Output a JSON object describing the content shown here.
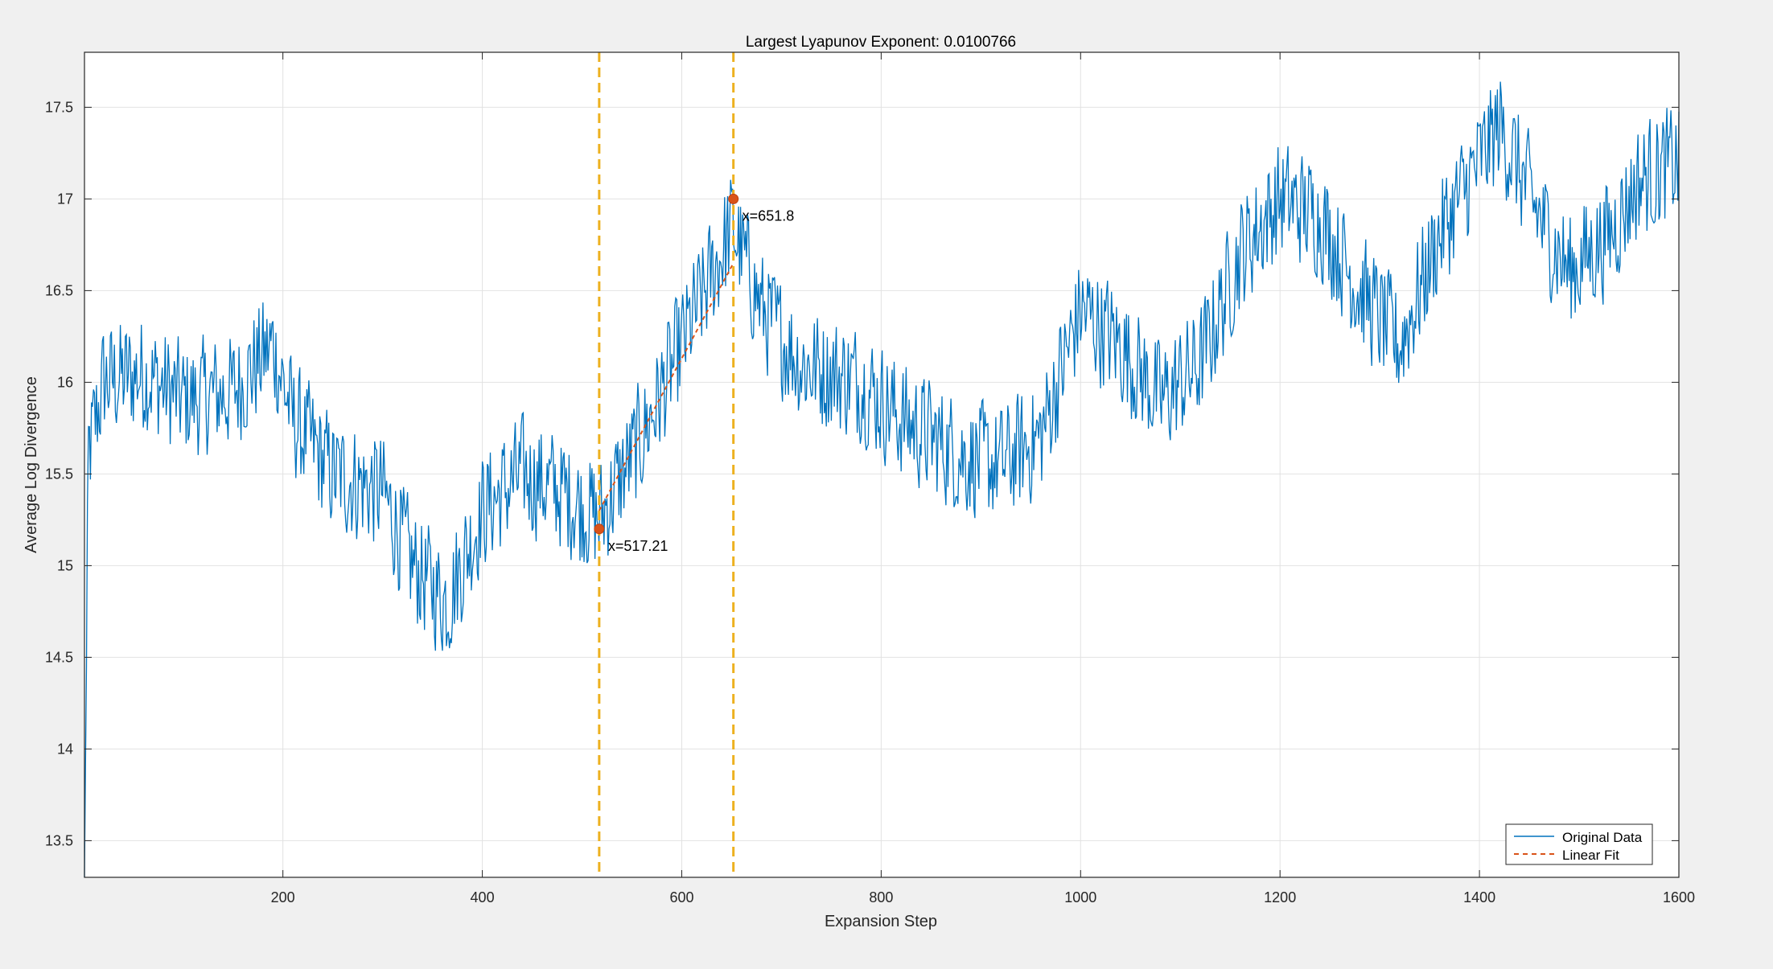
{
  "chart_data": {
    "type": "line",
    "title": "Largest Lyapunov Exponent: 0.0100766",
    "xlabel": "Expansion Step",
    "ylabel": "Average Log Divergence",
    "xlim": [
      1,
      1600
    ],
    "ylim": [
      13.3,
      17.8
    ],
    "xticks": [
      200,
      400,
      600,
      800,
      1000,
      1200,
      1400,
      1600
    ],
    "xtick_labels": [
      "200",
      "400",
      "600",
      "800",
      "1000",
      "1200",
      "1400",
      "1600"
    ],
    "yticks": [
      13.5,
      14,
      14.5,
      15,
      15.5,
      16,
      16.5,
      17,
      17.5
    ],
    "ytick_labels": [
      "13.5",
      "14",
      "14.5",
      "15",
      "15.5",
      "16",
      "16.5",
      "17",
      "17.5"
    ],
    "grid": true,
    "legend_location": "bottom-right",
    "series": [
      {
        "name": "Original Data",
        "style": "solid",
        "color": "#0072bd",
        "sample_step": 10,
        "trend": [
          [
            1,
            13.3
          ],
          [
            5,
            15.6
          ],
          [
            20,
            16.0
          ],
          [
            60,
            16.05
          ],
          [
            100,
            15.9
          ],
          [
            150,
            15.95
          ],
          [
            190,
            16.2
          ],
          [
            210,
            15.8
          ],
          [
            250,
            15.5
          ],
          [
            300,
            15.4
          ],
          [
            330,
            15.0
          ],
          [
            365,
            14.8
          ],
          [
            400,
            15.3
          ],
          [
            440,
            15.5
          ],
          [
            480,
            15.4
          ],
          [
            517,
            15.25
          ],
          [
            560,
            15.7
          ],
          [
            600,
            16.2
          ],
          [
            651,
            16.85
          ],
          [
            680,
            16.4
          ],
          [
            720,
            16.1
          ],
          [
            780,
            16.0
          ],
          [
            820,
            15.8
          ],
          [
            880,
            15.6
          ],
          [
            920,
            15.55
          ],
          [
            960,
            15.7
          ],
          [
            1000,
            16.4
          ],
          [
            1040,
            16.2
          ],
          [
            1080,
            15.9
          ],
          [
            1120,
            16.1
          ],
          [
            1160,
            16.7
          ],
          [
            1200,
            17.0
          ],
          [
            1240,
            16.9
          ],
          [
            1280,
            16.5
          ],
          [
            1320,
            16.2
          ],
          [
            1360,
            16.8
          ],
          [
            1400,
            17.2
          ],
          [
            1420,
            17.4
          ],
          [
            1460,
            16.9
          ],
          [
            1490,
            16.6
          ],
          [
            1530,
            16.8
          ],
          [
            1560,
            17.1
          ],
          [
            1600,
            17.2
          ]
        ]
      },
      {
        "name": "Linear Fit",
        "style": "dashed",
        "color": "#d95319",
        "x": [
          517.21,
          651.8
        ],
        "y": [
          15.3,
          16.65
        ]
      }
    ],
    "vertical_lines": [
      {
        "x": 517.21,
        "color": "#edb120",
        "style": "dashed"
      },
      {
        "x": 651.8,
        "color": "#edb120",
        "style": "dashed"
      }
    ],
    "markers": [
      {
        "x": 517.21,
        "y": 15.2,
        "label": "x=517.21",
        "color": "#d95319"
      },
      {
        "x": 651.8,
        "y": 17.0,
        "label": "x=651.8",
        "color": "#d95319"
      }
    ]
  }
}
